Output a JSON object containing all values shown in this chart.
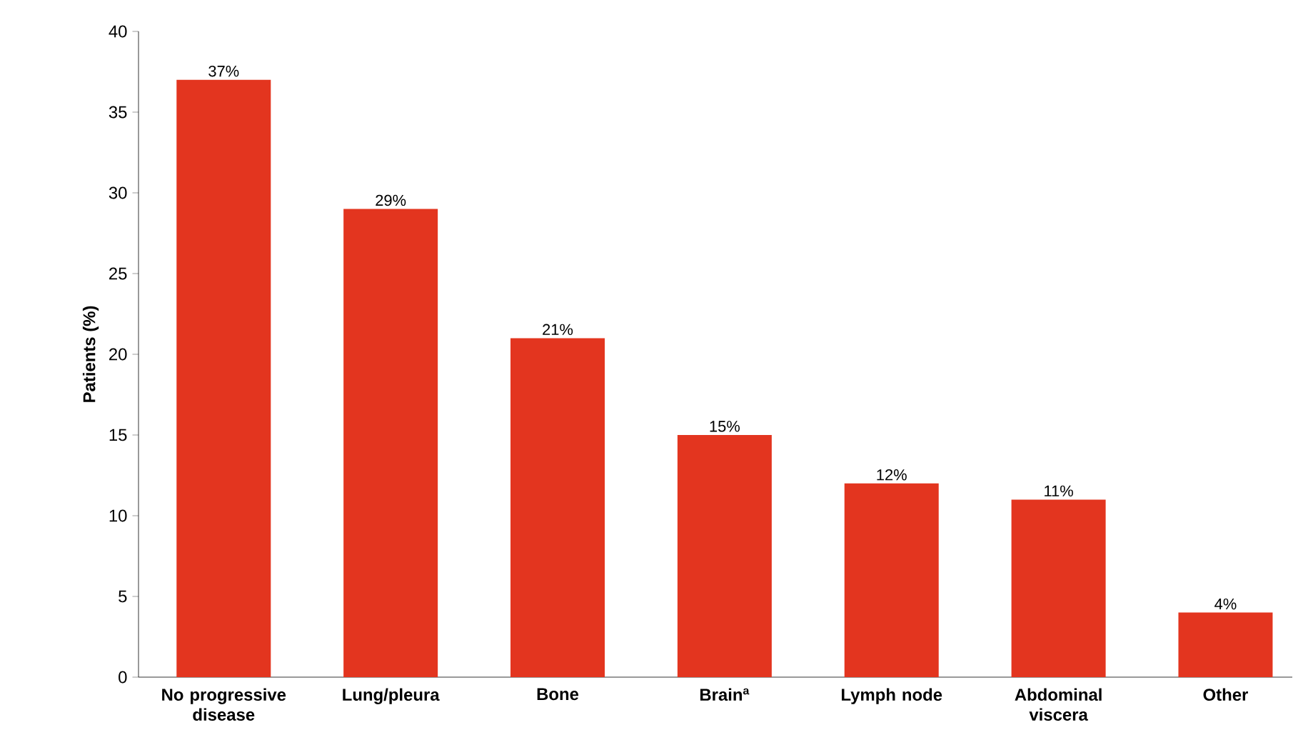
{
  "chart_data": {
    "type": "bar",
    "ylabel": "Patients (%)",
    "categories": [
      "No progressive disease",
      "Lung/pleura",
      "Bone",
      "Brain$^{a}$",
      "Lymph node",
      "Abdominal viscera",
      "Other"
    ],
    "values": [
      37,
      29,
      21,
      15,
      12,
      11,
      4
    ],
    "value_labels": [
      "37%",
      "29%",
      "21%",
      "15%",
      "12%",
      "11%",
      "4%"
    ],
    "color": "#e3351f",
    "ylim": [
      0,
      40
    ],
    "yticks": [
      0,
      5,
      10,
      15,
      20,
      25,
      30,
      35,
      40
    ]
  }
}
